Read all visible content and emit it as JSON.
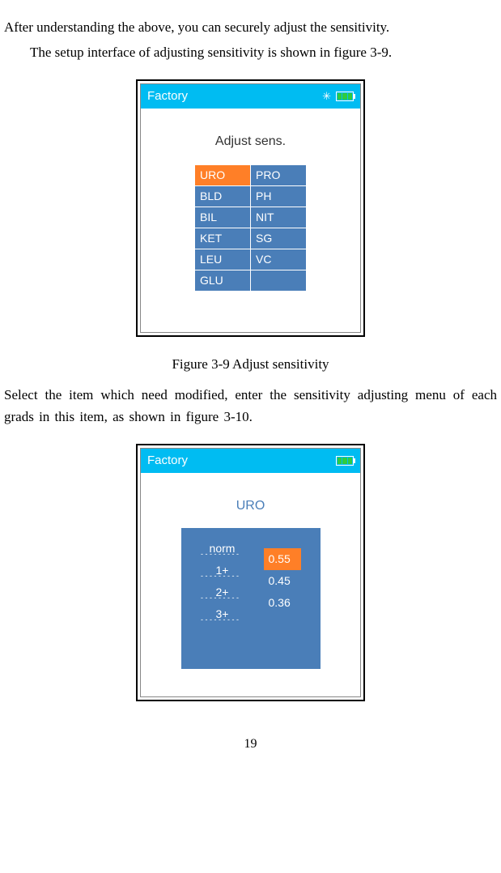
{
  "text": {
    "para1": "After understanding the above, you can securely adjust the sensitivity.",
    "para2": "The setup interface of adjusting sensitivity is shown in figure 3-9.",
    "caption1": "Figure 3-9 Adjust sensitivity",
    "para3": "Select the item which need modified, enter the sensitivity adjusting menu of each grads in this item, as shown in figure 3-10.",
    "page": "19"
  },
  "screen1": {
    "status_title": "Factory",
    "title": "Adjust sens.",
    "cells": [
      "URO",
      "PRO",
      "BLD",
      "PH",
      "BIL",
      "NIT",
      "KET",
      "SG",
      "LEU",
      "VC",
      "GLU",
      ""
    ],
    "selected_index": 0
  },
  "screen2": {
    "status_title": "Factory",
    "title": "URO",
    "grads": [
      "norm",
      "1+",
      "2+",
      "3+"
    ],
    "values": [
      "0.55",
      "0.45",
      "0.36"
    ],
    "selected_value_index": 0
  },
  "colors": {
    "status_bar": "#00bcf2",
    "panel_blue": "#4a7eb8",
    "selected_orange": "#ff7f27",
    "battery_green": "#2ecc40"
  }
}
